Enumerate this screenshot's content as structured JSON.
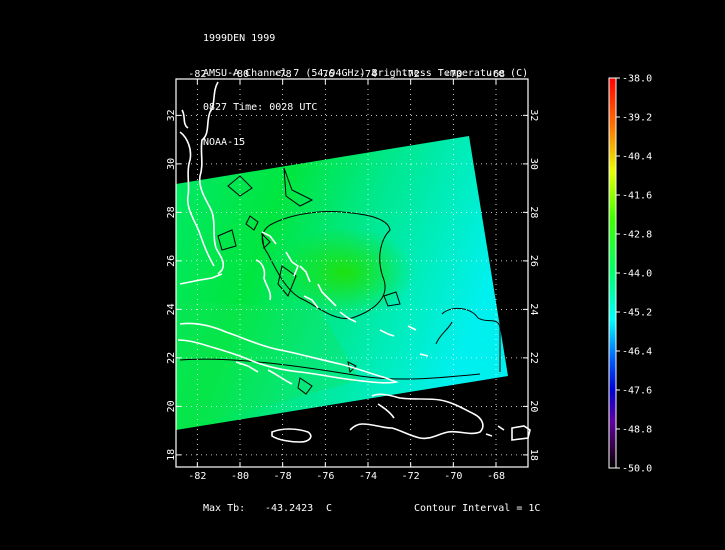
{
  "header": {
    "line1": "1999DEN 1999",
    "line2": "AMSU-A Channel 7 (54.94GHz) Brightness Temperature (C)",
    "line3": "0827 Time: 0028 UTC",
    "line4": "NOAA-15"
  },
  "map": {
    "lon_range": [
      -83,
      -66.5
    ],
    "lat_range": [
      17.5,
      33.5
    ],
    "lon_ticks": [
      "-82",
      "-80",
      "-78",
      "-76",
      "-74",
      "-72",
      "-70",
      "-68"
    ],
    "lat_ticks": [
      "18",
      "20",
      "22",
      "24",
      "26",
      "28",
      "30",
      "32"
    ],
    "grid": true,
    "colors": {
      "background": "#000000",
      "frame": "#ffffff",
      "coast": "#ffffff",
      "contour": "#000000"
    }
  },
  "colorbar": {
    "labels": [
      "-38.0",
      "-39.2",
      "-40.4",
      "-41.6",
      "-42.8",
      "-44.0",
      "-45.2",
      "-46.4",
      "-47.6",
      "-48.8",
      "-50.0"
    ]
  },
  "footer": {
    "max_label": "Max Tb:",
    "max_value": "-43.2423",
    "max_unit": "C",
    "contour": "Contour Interval = 1C"
  }
}
